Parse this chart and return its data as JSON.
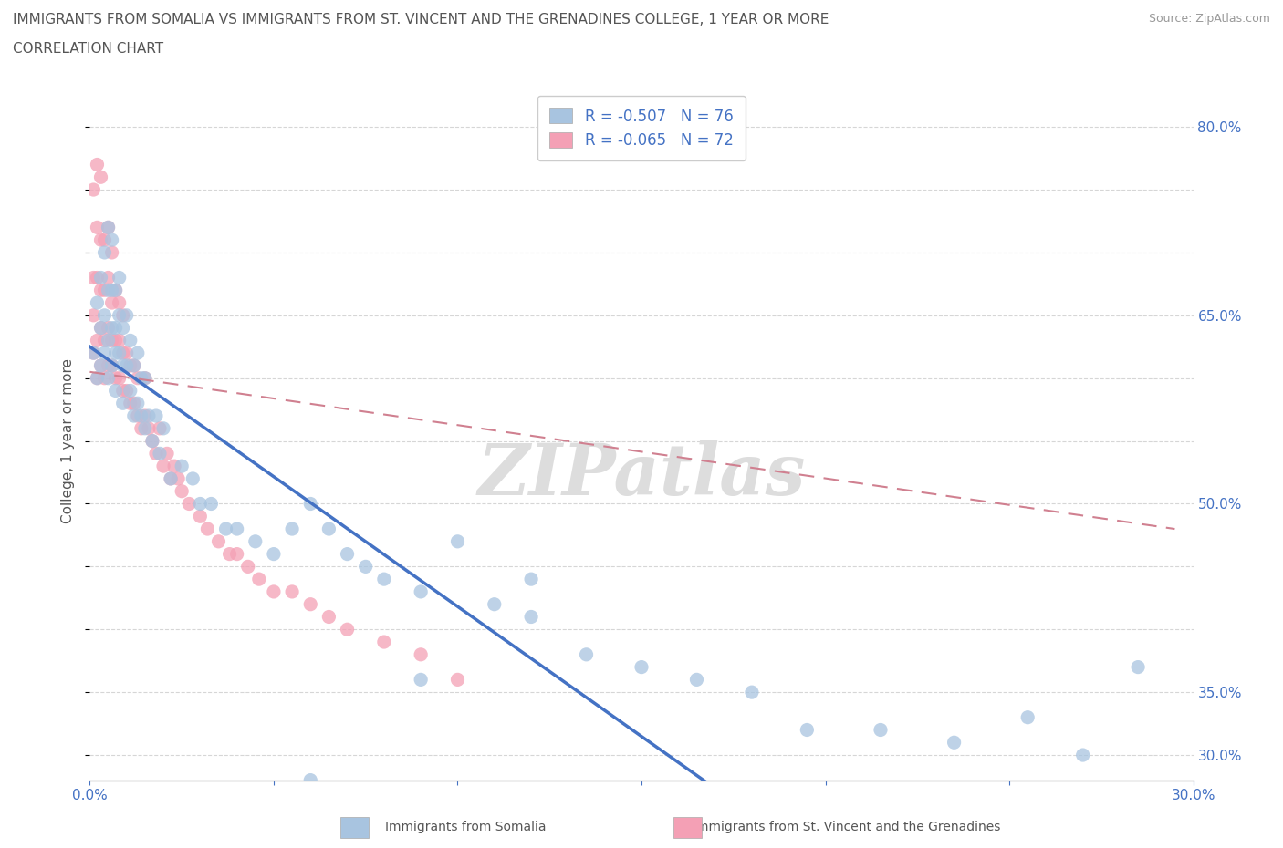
{
  "title_line1": "IMMIGRANTS FROM SOMALIA VS IMMIGRANTS FROM ST. VINCENT AND THE GRENADINES COLLEGE, 1 YEAR OR MORE",
  "title_line2": "CORRELATION CHART",
  "source": "Source: ZipAtlas.com",
  "ylabel_label": "College, 1 year or more",
  "legend_blue_label": "Immigrants from Somalia",
  "legend_pink_label": "Immigrants from St. Vincent and the Grenadines",
  "r_blue": -0.507,
  "n_blue": 76,
  "r_pink": -0.065,
  "n_pink": 72,
  "watermark": "ZIPatlas",
  "color_blue": "#a8c4e0",
  "color_pink": "#f4a0b5",
  "color_line_blue": "#4472c4",
  "color_line_pink": "#d08090",
  "color_text_blue": "#4472c4",
  "xlim": [
    0.0,
    0.3
  ],
  "ylim": [
    0.28,
    0.82
  ],
  "blue_line_x": [
    0.0,
    0.295
  ],
  "blue_line_y": [
    0.625,
    0.015
  ],
  "pink_line_x": [
    0.0,
    0.295
  ],
  "pink_line_y": [
    0.605,
    0.48
  ],
  "blue_x": [
    0.001,
    0.002,
    0.002,
    0.003,
    0.003,
    0.003,
    0.004,
    0.004,
    0.004,
    0.005,
    0.005,
    0.005,
    0.005,
    0.006,
    0.006,
    0.006,
    0.006,
    0.007,
    0.007,
    0.007,
    0.007,
    0.008,
    0.008,
    0.008,
    0.009,
    0.009,
    0.009,
    0.01,
    0.01,
    0.011,
    0.011,
    0.012,
    0.012,
    0.013,
    0.013,
    0.014,
    0.014,
    0.015,
    0.015,
    0.016,
    0.017,
    0.018,
    0.019,
    0.02,
    0.022,
    0.025,
    0.028,
    0.03,
    0.033,
    0.037,
    0.04,
    0.045,
    0.05,
    0.055,
    0.06,
    0.065,
    0.07,
    0.075,
    0.08,
    0.09,
    0.1,
    0.11,
    0.12,
    0.135,
    0.15,
    0.165,
    0.18,
    0.195,
    0.215,
    0.235,
    0.255,
    0.27,
    0.285,
    0.12,
    0.09,
    0.06
  ],
  "blue_y": [
    0.62,
    0.6,
    0.66,
    0.61,
    0.64,
    0.68,
    0.62,
    0.65,
    0.7,
    0.6,
    0.63,
    0.67,
    0.72,
    0.61,
    0.64,
    0.67,
    0.71,
    0.62,
    0.64,
    0.67,
    0.59,
    0.62,
    0.65,
    0.68,
    0.61,
    0.64,
    0.58,
    0.61,
    0.65,
    0.59,
    0.63,
    0.57,
    0.61,
    0.58,
    0.62,
    0.57,
    0.6,
    0.56,
    0.6,
    0.57,
    0.55,
    0.57,
    0.54,
    0.56,
    0.52,
    0.53,
    0.52,
    0.5,
    0.5,
    0.48,
    0.48,
    0.47,
    0.46,
    0.48,
    0.5,
    0.48,
    0.46,
    0.45,
    0.44,
    0.43,
    0.47,
    0.42,
    0.41,
    0.38,
    0.37,
    0.36,
    0.35,
    0.32,
    0.32,
    0.31,
    0.33,
    0.3,
    0.37,
    0.44,
    0.36,
    0.28
  ],
  "pink_x": [
    0.001,
    0.001,
    0.001,
    0.001,
    0.002,
    0.002,
    0.002,
    0.002,
    0.002,
    0.003,
    0.003,
    0.003,
    0.003,
    0.003,
    0.004,
    0.004,
    0.004,
    0.004,
    0.005,
    0.005,
    0.005,
    0.005,
    0.006,
    0.006,
    0.006,
    0.006,
    0.007,
    0.007,
    0.007,
    0.008,
    0.008,
    0.008,
    0.009,
    0.009,
    0.009,
    0.01,
    0.01,
    0.011,
    0.011,
    0.012,
    0.012,
    0.013,
    0.013,
    0.014,
    0.015,
    0.015,
    0.016,
    0.017,
    0.018,
    0.019,
    0.02,
    0.021,
    0.022,
    0.023,
    0.024,
    0.025,
    0.027,
    0.03,
    0.032,
    0.035,
    0.038,
    0.04,
    0.043,
    0.046,
    0.05,
    0.055,
    0.06,
    0.065,
    0.07,
    0.08,
    0.09,
    0.1
  ],
  "pink_y": [
    0.62,
    0.65,
    0.68,
    0.75,
    0.6,
    0.63,
    0.68,
    0.72,
    0.77,
    0.61,
    0.64,
    0.67,
    0.71,
    0.76,
    0.6,
    0.63,
    0.67,
    0.71,
    0.61,
    0.64,
    0.68,
    0.72,
    0.61,
    0.63,
    0.66,
    0.7,
    0.6,
    0.63,
    0.67,
    0.6,
    0.63,
    0.66,
    0.59,
    0.62,
    0.65,
    0.59,
    0.62,
    0.58,
    0.61,
    0.58,
    0.61,
    0.57,
    0.6,
    0.56,
    0.57,
    0.6,
    0.56,
    0.55,
    0.54,
    0.56,
    0.53,
    0.54,
    0.52,
    0.53,
    0.52,
    0.51,
    0.5,
    0.49,
    0.48,
    0.47,
    0.46,
    0.46,
    0.45,
    0.44,
    0.43,
    0.43,
    0.42,
    0.41,
    0.4,
    0.39,
    0.38,
    0.36
  ]
}
